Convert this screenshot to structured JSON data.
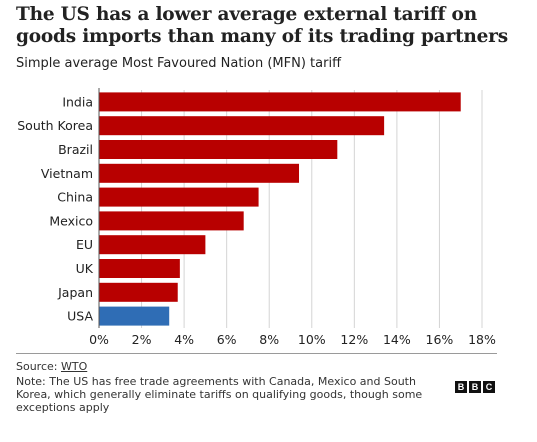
{
  "title": "The US has a lower average external tariff on goods imports than many of its trading partners",
  "subtitle": "Simple average Most Favoured Nation (MFN) tariff",
  "chart_data": {
    "type": "bar",
    "orientation": "horizontal",
    "categories": [
      "India",
      "South Korea",
      "Brazil",
      "Vietnam",
      "China",
      "Mexico",
      "EU",
      "UK",
      "Japan",
      "USA"
    ],
    "values": [
      17.0,
      13.4,
      11.2,
      9.4,
      7.5,
      6.8,
      5.0,
      3.8,
      3.7,
      3.3
    ],
    "colors": [
      "#b80000",
      "#b80000",
      "#b80000",
      "#b80000",
      "#b80000",
      "#b80000",
      "#b80000",
      "#b80000",
      "#b80000",
      "#2f6db5"
    ],
    "xlim": [
      0,
      18
    ],
    "xticks": [
      0,
      2,
      4,
      6,
      8,
      10,
      12,
      14,
      16,
      18
    ],
    "xtick_labels": [
      "0%",
      "2%",
      "4%",
      "6%",
      "8%",
      "10%",
      "12%",
      "14%",
      "16%",
      "18%"
    ],
    "grid": true,
    "unit": "%"
  },
  "footer": {
    "source_label": "Source: ",
    "source_link": "WTO",
    "note": "Note: The US has free trade agreements with Canada, Mexico and South Korea, which generally eliminate tariffs on qualifying goods, though some exceptions apply",
    "logo_letters": [
      "B",
      "B",
      "C"
    ]
  }
}
